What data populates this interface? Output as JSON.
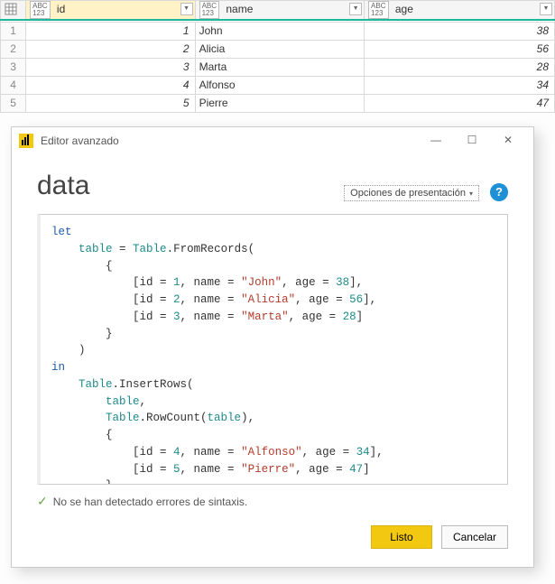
{
  "table": {
    "columns": [
      {
        "name": "id",
        "label": "id",
        "type_top": "ABC",
        "type_bot": "123"
      },
      {
        "name": "name",
        "label": "name",
        "type_top": "ABC",
        "type_bot": "123"
      },
      {
        "name": "age",
        "label": "age",
        "type_top": "ABC",
        "type_bot": "123"
      }
    ],
    "selected_column_index": 0,
    "accent_color": "#19b89a",
    "rows": [
      {
        "n": "1",
        "id": "1",
        "name": "John",
        "age": "38"
      },
      {
        "n": "2",
        "id": "2",
        "name": "Alicia",
        "age": "56"
      },
      {
        "n": "3",
        "id": "3",
        "name": "Marta",
        "age": "28"
      },
      {
        "n": "4",
        "id": "4",
        "name": "Alfonso",
        "age": "34"
      },
      {
        "n": "5",
        "id": "5",
        "name": "Pierre",
        "age": "47"
      }
    ]
  },
  "editor": {
    "window_title": "Editor avanzado",
    "query_name": "data",
    "presentation_label": "Opciones de presentación",
    "help_tooltip": "?",
    "status_text": "No se han detectado errores de sintaxis.",
    "buttons": {
      "done": "Listo",
      "cancel": "Cancelar"
    },
    "primary_color": "#f2c811",
    "code_tokens": [
      [
        "kw",
        "let"
      ],
      [
        "nl"
      ],
      [
        "pl",
        "    "
      ],
      [
        "var",
        "table"
      ],
      [
        "pl",
        " = "
      ],
      [
        "fn",
        "Table"
      ],
      [
        "pl",
        ".FromRecords("
      ],
      [
        "nl"
      ],
      [
        "pl",
        "        {"
      ],
      [
        "nl"
      ],
      [
        "pl",
        "            [id = "
      ],
      [
        "num2",
        "1"
      ],
      [
        "pl",
        ", name = "
      ],
      [
        "str",
        "\"John\""
      ],
      [
        "pl",
        ", age = "
      ],
      [
        "num2",
        "38"
      ],
      [
        "pl",
        "],"
      ],
      [
        "nl"
      ],
      [
        "pl",
        "            [id = "
      ],
      [
        "num2",
        "2"
      ],
      [
        "pl",
        ", name = "
      ],
      [
        "str",
        "\"Alicia\""
      ],
      [
        "pl",
        ", age = "
      ],
      [
        "num2",
        "56"
      ],
      [
        "pl",
        "],"
      ],
      [
        "nl"
      ],
      [
        "pl",
        "            [id = "
      ],
      [
        "num2",
        "3"
      ],
      [
        "pl",
        ", name = "
      ],
      [
        "str",
        "\"Marta\""
      ],
      [
        "pl",
        ", age = "
      ],
      [
        "num2",
        "28"
      ],
      [
        "pl",
        "]"
      ],
      [
        "nl"
      ],
      [
        "pl",
        "        }"
      ],
      [
        "nl"
      ],
      [
        "pl",
        "    )"
      ],
      [
        "nl"
      ],
      [
        "kw",
        "in"
      ],
      [
        "nl"
      ],
      [
        "pl",
        "    "
      ],
      [
        "fn",
        "Table"
      ],
      [
        "pl",
        ".InsertRows("
      ],
      [
        "nl"
      ],
      [
        "pl",
        "        "
      ],
      [
        "var",
        "table"
      ],
      [
        "pl",
        ","
      ],
      [
        "nl"
      ],
      [
        "pl",
        "        "
      ],
      [
        "fn",
        "Table"
      ],
      [
        "pl",
        ".RowCount("
      ],
      [
        "var",
        "table"
      ],
      [
        "pl",
        "),"
      ],
      [
        "nl"
      ],
      [
        "pl",
        "        {"
      ],
      [
        "nl"
      ],
      [
        "pl",
        "            [id = "
      ],
      [
        "num2",
        "4"
      ],
      [
        "pl",
        ", name = "
      ],
      [
        "str",
        "\"Alfonso\""
      ],
      [
        "pl",
        ", age = "
      ],
      [
        "num2",
        "34"
      ],
      [
        "pl",
        "],"
      ],
      [
        "nl"
      ],
      [
        "pl",
        "            [id = "
      ],
      [
        "num2",
        "5"
      ],
      [
        "pl",
        ", name = "
      ],
      [
        "str",
        "\"Pierre\""
      ],
      [
        "pl",
        ", age = "
      ],
      [
        "num2",
        "47"
      ],
      [
        "pl",
        "]"
      ],
      [
        "nl"
      ],
      [
        "pl",
        "        }"
      ],
      [
        "nl"
      ],
      [
        "pl",
        "    )"
      ]
    ]
  }
}
